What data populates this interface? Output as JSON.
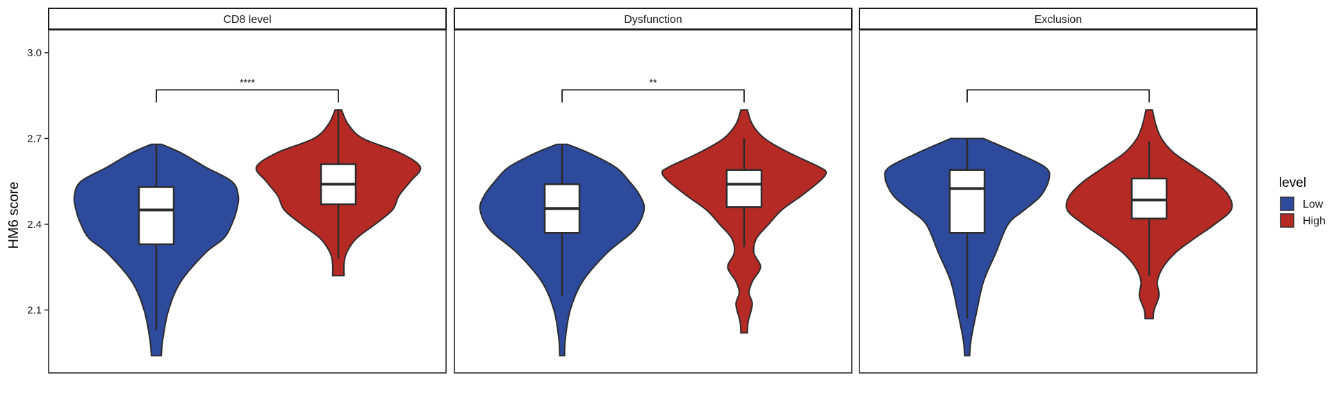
{
  "chart_data": {
    "type": "violin",
    "ylabel": "HM6 score",
    "ylim": [
      1.88,
      3.08
    ],
    "yticks": [
      2.1,
      2.4,
      2.7,
      3.0
    ],
    "ytick_labels": [
      "2.1",
      "2.4",
      "2.7",
      "3.0"
    ],
    "legend": {
      "title": "level",
      "entries": [
        {
          "label": "Low",
          "color": "#2E4A9C"
        },
        {
          "label": "High",
          "color": "#B52A25"
        }
      ]
    },
    "panels": [
      {
        "strip": "CD8 level",
        "significance": "****",
        "bracket_y": 2.87,
        "groups": [
          {
            "level": "Low",
            "ymin": 1.94,
            "ymax": 2.68,
            "q1": 2.33,
            "median": 2.45,
            "q3": 2.53,
            "whisker_low": 2.03,
            "whisker_high": 2.68,
            "profile": [
              [
                1.94,
                0.06
              ],
              [
                2.0,
                0.08
              ],
              [
                2.1,
                0.15
              ],
              [
                2.2,
                0.3
              ],
              [
                2.3,
                0.6
              ],
              [
                2.35,
                0.82
              ],
              [
                2.4,
                0.92
              ],
              [
                2.45,
                0.98
              ],
              [
                2.5,
                1.0
              ],
              [
                2.55,
                0.92
              ],
              [
                2.6,
                0.6
              ],
              [
                2.65,
                0.3
              ],
              [
                2.68,
                0.06
              ]
            ]
          },
          {
            "level": "High",
            "ymin": 2.22,
            "ymax": 2.8,
            "q1": 2.47,
            "median": 2.54,
            "q3": 2.61,
            "whisker_low": 2.28,
            "whisker_high": 2.8,
            "profile": [
              [
                2.22,
                0.07
              ],
              [
                2.26,
                0.07
              ],
              [
                2.3,
                0.1
              ],
              [
                2.35,
                0.22
              ],
              [
                2.4,
                0.45
              ],
              [
                2.45,
                0.66
              ],
              [
                2.5,
                0.74
              ],
              [
                2.55,
                0.88
              ],
              [
                2.6,
                1.0
              ],
              [
                2.65,
                0.75
              ],
              [
                2.7,
                0.3
              ],
              [
                2.75,
                0.12
              ],
              [
                2.8,
                0.04
              ]
            ]
          }
        ]
      },
      {
        "strip": "Dysfunction",
        "significance": "**",
        "bracket_y": 2.87,
        "groups": [
          {
            "level": "Low",
            "ymin": 1.94,
            "ymax": 2.68,
            "q1": 2.37,
            "median": 2.455,
            "q3": 2.54,
            "whisker_low": 2.15,
            "whisker_high": 2.68,
            "profile": [
              [
                1.94,
                0.03
              ],
              [
                2.0,
                0.04
              ],
              [
                2.1,
                0.1
              ],
              [
                2.2,
                0.25
              ],
              [
                2.3,
                0.55
              ],
              [
                2.38,
                0.88
              ],
              [
                2.45,
                1.0
              ],
              [
                2.5,
                0.95
              ],
              [
                2.55,
                0.82
              ],
              [
                2.6,
                0.65
              ],
              [
                2.65,
                0.32
              ],
              [
                2.68,
                0.06
              ]
            ]
          },
          {
            "level": "High",
            "ymin": 2.02,
            "ymax": 2.8,
            "q1": 2.46,
            "median": 2.54,
            "q3": 2.59,
            "whisker_low": 2.32,
            "whisker_high": 2.7,
            "profile": [
              [
                2.02,
                0.04
              ],
              [
                2.06,
                0.05
              ],
              [
                2.12,
                0.1
              ],
              [
                2.16,
                0.06
              ],
              [
                2.2,
                0.1
              ],
              [
                2.25,
                0.2
              ],
              [
                2.3,
                0.12
              ],
              [
                2.35,
                0.15
              ],
              [
                2.4,
                0.3
              ],
              [
                2.45,
                0.46
              ],
              [
                2.5,
                0.7
              ],
              [
                2.55,
                0.92
              ],
              [
                2.58,
                1.0
              ],
              [
                2.6,
                0.92
              ],
              [
                2.65,
                0.55
              ],
              [
                2.7,
                0.25
              ],
              [
                2.75,
                0.1
              ],
              [
                2.8,
                0.04
              ]
            ]
          }
        ]
      },
      {
        "strip": "Exclusion",
        "significance": "",
        "bracket_y": 2.87,
        "groups": [
          {
            "level": "Low",
            "ymin": 1.94,
            "ymax": 2.7,
            "q1": 2.37,
            "median": 2.525,
            "q3": 2.59,
            "whisker_low": 2.07,
            "whisker_high": 2.7,
            "profile": [
              [
                1.94,
                0.03
              ],
              [
                2.0,
                0.05
              ],
              [
                2.1,
                0.12
              ],
              [
                2.2,
                0.2
              ],
              [
                2.3,
                0.35
              ],
              [
                2.4,
                0.5
              ],
              [
                2.45,
                0.7
              ],
              [
                2.5,
                0.9
              ],
              [
                2.56,
                1.0
              ],
              [
                2.6,
                0.95
              ],
              [
                2.65,
                0.6
              ],
              [
                2.7,
                0.2
              ]
            ]
          },
          {
            "level": "High",
            "ymin": 2.07,
            "ymax": 2.8,
            "q1": 2.42,
            "median": 2.485,
            "q3": 2.56,
            "whisker_low": 2.22,
            "whisker_high": 2.69,
            "profile": [
              [
                2.07,
                0.05
              ],
              [
                2.1,
                0.06
              ],
              [
                2.15,
                0.12
              ],
              [
                2.2,
                0.1
              ],
              [
                2.25,
                0.17
              ],
              [
                2.3,
                0.32
              ],
              [
                2.35,
                0.55
              ],
              [
                2.4,
                0.8
              ],
              [
                2.45,
                1.0
              ],
              [
                2.5,
                0.97
              ],
              [
                2.55,
                0.8
              ],
              [
                2.6,
                0.55
              ],
              [
                2.65,
                0.3
              ],
              [
                2.7,
                0.15
              ],
              [
                2.75,
                0.08
              ],
              [
                2.8,
                0.04
              ]
            ]
          }
        ]
      }
    ]
  }
}
